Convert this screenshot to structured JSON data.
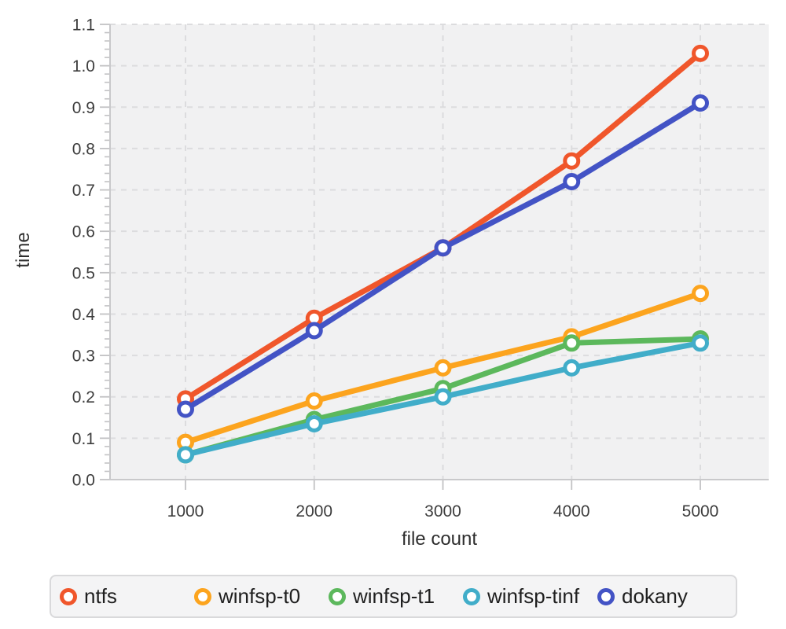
{
  "chart_data": {
    "type": "line",
    "title": "",
    "xlabel": "file count",
    "ylabel": "time",
    "x": [
      1000,
      2000,
      3000,
      4000,
      5000
    ],
    "xtick_labels": [
      "1000",
      "2000",
      "3000",
      "4000",
      "5000"
    ],
    "ytick_labels": [
      "0.0",
      "0.1",
      "0.2",
      "0.3",
      "0.4",
      "0.5",
      "0.6",
      "0.7",
      "0.8",
      "0.9",
      "1.0",
      "1.1"
    ],
    "ylim": [
      0,
      1.1
    ],
    "grid": "dashed-major-both-axes",
    "minor_ticks_y_step": 0.02,
    "marker": "open-circle",
    "legend_position": "bottom",
    "plot_bg": "#f1f1f2",
    "grid_color": "#dcdcde",
    "axis_line_color": "#c9c9cb",
    "tick_color": "#c2c2c4",
    "tick_label_color": "#3d3d3d",
    "series": [
      {
        "name": "ntfs",
        "color": "#F0562B",
        "values": [
          0.195,
          0.39,
          0.56,
          0.77,
          1.03
        ]
      },
      {
        "name": "winfsp-t0",
        "color": "#FCA41E",
        "values": [
          0.09,
          0.19,
          0.27,
          0.345,
          0.45
        ]
      },
      {
        "name": "winfsp-t1",
        "color": "#5CB85C",
        "values": [
          0.06,
          0.145,
          0.22,
          0.33,
          0.34
        ]
      },
      {
        "name": "winfsp-tinf",
        "color": "#41ADC9",
        "values": [
          0.06,
          0.135,
          0.2,
          0.27,
          0.33
        ]
      },
      {
        "name": "dokany",
        "color": "#4353C5",
        "values": [
          0.17,
          0.36,
          0.56,
          0.72,
          0.91
        ]
      }
    ]
  }
}
